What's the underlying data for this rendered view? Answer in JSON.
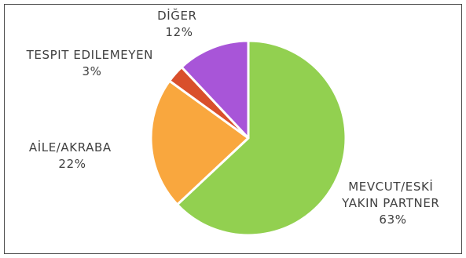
{
  "chart_data": {
    "type": "pie",
    "title": "",
    "legend": "none",
    "slices": [
      {
        "label_lines": [
          "MEVCUT/ESKİ",
          "YAKIN PARTNER"
        ],
        "value_label": "63%",
        "value": 63,
        "color": "#92d050"
      },
      {
        "label_lines": [
          "AİLE/AKRABA"
        ],
        "value_label": "22%",
        "value": 22,
        "color": "#f9a73e"
      },
      {
        "label_lines": [
          "TESPIT EDILEMEYEN"
        ],
        "value_label": "3%",
        "value": 3,
        "color": "#d94f2b"
      },
      {
        "label_lines": [
          "DİĞER"
        ],
        "value_label": "12%",
        "value": 12,
        "color": "#a855d8"
      }
    ]
  }
}
